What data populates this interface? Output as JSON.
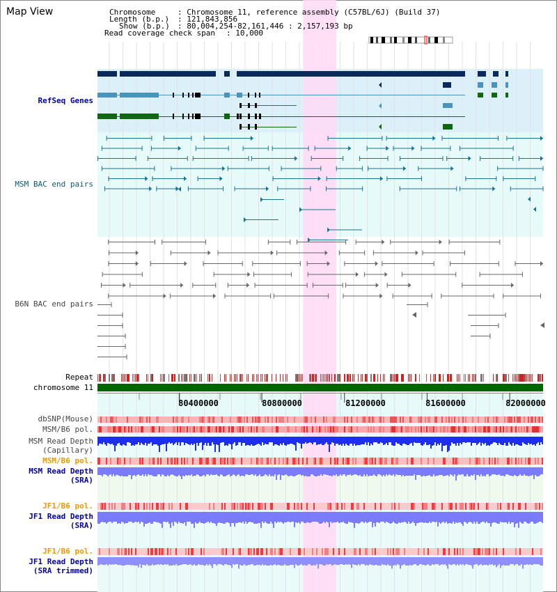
{
  "title": "Map View",
  "info": {
    "chromosome_key": "Chromosome",
    "chromosome_val": ": Chromosome 11, reference assembly (C57BL/6J) (Build 37)",
    "length_key": "Length (b.p.)",
    "length_val": ": 121,843,856",
    "show_key": "Show (b.p.)",
    "show_val": ": 80,004,254-82,161,446 : 2,157,193 bp",
    "span_key": "Read coverage check span",
    "span_val": ": 10,000"
  },
  "tracks": {
    "refseq": "RefSeq Genes",
    "msm_bac": "MSM BAC end pairs",
    "b6n_bac": "B6N BAC end pairs",
    "repeat": "Repeat",
    "chromosome": "chromosome 11",
    "dbsnp": "dbSNP(Mouse)",
    "msm_b6_pol_1": "MSM/B6 pol.",
    "msm_depth_cap_1": "MSM Read Depth",
    "msm_depth_cap_2": "(Capillary)",
    "msm_b6_pol_2": "MSM/B6 pol.",
    "msm_depth_sra_1": "MSM Read Depth",
    "msm_depth_sra_2": "(SRA)",
    "jf1_b6_pol_1": "JF1/B6 pol.",
    "jf1_depth_sra_1": "JF1 Read Depth",
    "jf1_depth_sra_2": "(SRA)",
    "jf1_b6_pol_2": "JF1/B6 pol.",
    "jf1_depth_trim_1": "JF1 Read Depth",
    "jf1_depth_trim_2": "(SRA trimmed)"
  },
  "axis": {
    "ticks": [
      "80400000",
      "80800000",
      "81200000",
      "81600000",
      "82000000"
    ],
    "tick_values": [
      80400000,
      80800000,
      81200000,
      81600000,
      82000000
    ],
    "start": 80004254,
    "end": 82161446
  },
  "highlight": {
    "start": 81000000,
    "end": 81160000
  },
  "colors": {
    "refseq_bg": "#dcf0fa",
    "msm_bg": "#e6fafa",
    "highlight": "#ffd9f5",
    "navy": "#0b2a5c",
    "steel": "#4a93bd",
    "green": "#116611",
    "teal": "#157294",
    "gray": "#666666",
    "chromosome": "#006600",
    "depth_cap": "#1e2eee",
    "depth_sra": "#7b7bff",
    "label_blue": "#0000aa",
    "label_orange": "#ee9900"
  }
}
